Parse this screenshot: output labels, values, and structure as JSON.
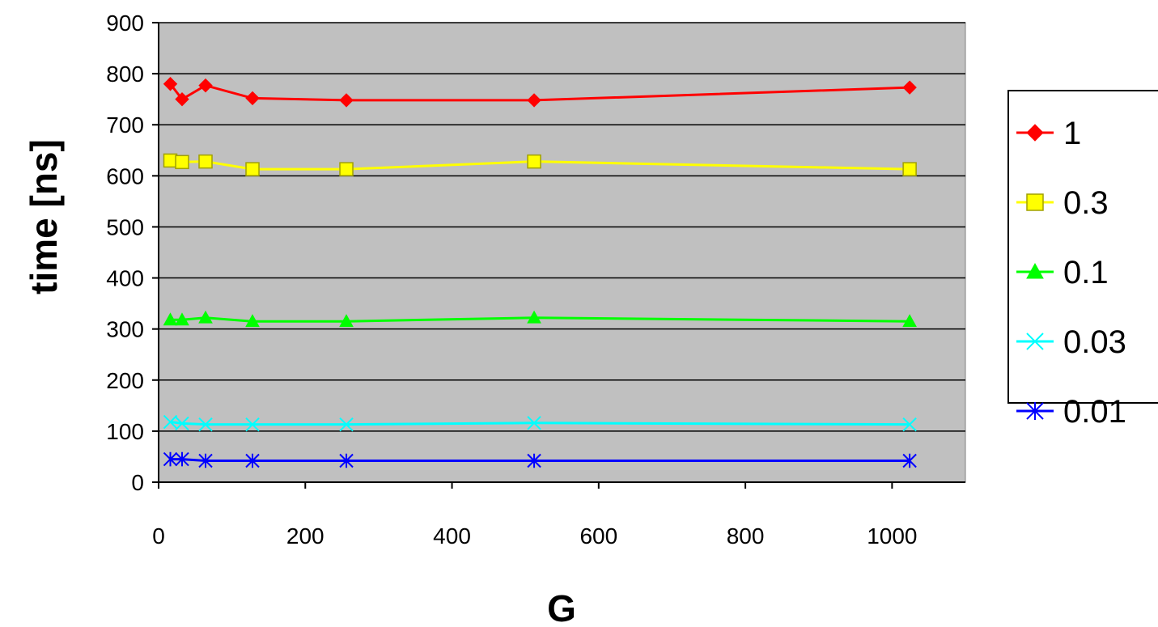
{
  "chart_data": {
    "type": "line",
    "title": "",
    "xlabel": "G",
    "ylabel": "time [ns]",
    "xlim": [
      0,
      1100
    ],
    "ylim": [
      0,
      900
    ],
    "xticks": [
      0,
      200,
      400,
      600,
      800,
      1000
    ],
    "yticks": [
      0,
      100,
      200,
      300,
      400,
      500,
      600,
      700,
      800,
      900
    ],
    "x_tick_labels": [
      "0",
      "200",
      "400",
      "600",
      "800",
      "1000"
    ],
    "y_tick_labels": [
      "0",
      "100",
      "200",
      "300",
      "400",
      "500",
      "600",
      "700",
      "800",
      "900"
    ],
    "grid": "horizontal",
    "legend_position": "right",
    "plot_background": "#c0c0c0",
    "x": [
      16,
      32,
      64,
      128,
      256,
      512,
      1024
    ],
    "series": [
      {
        "name": "1",
        "color": "#ff0000",
        "marker": "diamond",
        "values": [
          780,
          750,
          777,
          752,
          748,
          748,
          773
        ]
      },
      {
        "name": "0.3",
        "color": "#ffff00",
        "marker": "square",
        "values": [
          630,
          627,
          628,
          613,
          613,
          628,
          613
        ]
      },
      {
        "name": "0.1",
        "color": "#00ff00",
        "marker": "triangle",
        "values": [
          318,
          318,
          322,
          315,
          315,
          322,
          315
        ]
      },
      {
        "name": "0.03",
        "color": "#00ffff",
        "marker": "x",
        "values": [
          118,
          115,
          113,
          113,
          113,
          116,
          113
        ]
      },
      {
        "name": "0.01",
        "color": "#0000ff",
        "marker": "star",
        "values": [
          45,
          45,
          42,
          42,
          42,
          42,
          42
        ]
      }
    ]
  }
}
